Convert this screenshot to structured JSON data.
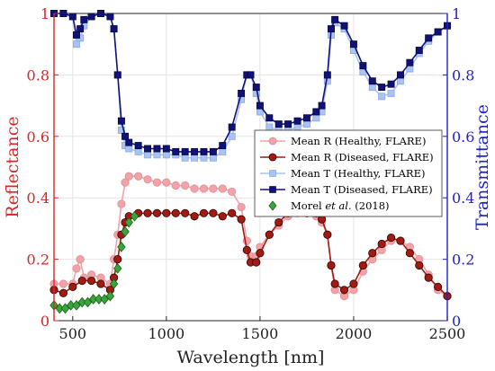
{
  "chart_data": {
    "type": "line",
    "xlabel": "Wavelength [nm]",
    "ylabel_left": "Reflectance",
    "ylabel_right": "Transmittance",
    "xlim": [
      400,
      2500
    ],
    "ylim_left": [
      0,
      1
    ],
    "ylim_right": [
      0,
      1
    ],
    "xticks": [
      "500",
      "1000",
      "1500",
      "2000",
      "2500"
    ],
    "yticks_left": [
      "0",
      "0.2",
      "0.4",
      "0.6",
      "0.8",
      "1"
    ],
    "yticks_right": [
      "0",
      "0.2",
      "0.4",
      "0.6",
      "0.8",
      "1"
    ],
    "grid": true,
    "legend_position": "center-right",
    "colors": {
      "left_axis": "#d62728",
      "right_axis": "#1f1fcc",
      "healthy_R": "#f0a3a8",
      "diseased_R": "#a31a12",
      "healthy_T": "#a9c3f2",
      "diseased_T": "#10127a",
      "morel": "#3aa63a"
    },
    "series": [
      {
        "name": "Mean R (Healthy, FLARE)",
        "axis": "left",
        "marker": "circle",
        "x": [
          400,
          450,
          500,
          520,
          540,
          560,
          600,
          650,
          700,
          720,
          740,
          760,
          780,
          800,
          850,
          900,
          950,
          1000,
          1050,
          1100,
          1150,
          1200,
          1250,
          1300,
          1350,
          1400,
          1430,
          1450,
          1480,
          1500,
          1550,
          1600,
          1650,
          1700,
          1750,
          1800,
          1830,
          1860,
          1880,
          1900,
          1950,
          2000,
          2050,
          2100,
          2150,
          2200,
          2250,
          2300,
          2350,
          2400,
          2450,
          2500
        ],
        "y": [
          0.12,
          0.12,
          0.12,
          0.17,
          0.2,
          0.14,
          0.15,
          0.14,
          0.12,
          0.2,
          0.28,
          0.38,
          0.45,
          0.47,
          0.47,
          0.46,
          0.45,
          0.45,
          0.44,
          0.44,
          0.43,
          0.43,
          0.43,
          0.43,
          0.42,
          0.37,
          0.26,
          0.21,
          0.21,
          0.24,
          0.28,
          0.31,
          0.34,
          0.35,
          0.35,
          0.34,
          0.32,
          0.28,
          0.18,
          0.1,
          0.08,
          0.1,
          0.16,
          0.2,
          0.23,
          0.26,
          0.26,
          0.24,
          0.2,
          0.15,
          0.1,
          0.08
        ]
      },
      {
        "name": "Mean R (Diseased, FLARE)",
        "axis": "left",
        "marker": "circle",
        "x": [
          400,
          450,
          500,
          550,
          600,
          650,
          700,
          720,
          740,
          760,
          780,
          800,
          850,
          900,
          950,
          1000,
          1050,
          1100,
          1150,
          1200,
          1250,
          1300,
          1350,
          1400,
          1430,
          1450,
          1480,
          1500,
          1550,
          1600,
          1650,
          1700,
          1750,
          1800,
          1830,
          1860,
          1880,
          1900,
          1950,
          2000,
          2050,
          2100,
          2150,
          2200,
          2250,
          2300,
          2350,
          2400,
          2450,
          2500
        ],
        "y": [
          0.1,
          0.09,
          0.11,
          0.13,
          0.13,
          0.12,
          0.1,
          0.14,
          0.2,
          0.28,
          0.32,
          0.34,
          0.35,
          0.35,
          0.35,
          0.35,
          0.35,
          0.35,
          0.34,
          0.35,
          0.35,
          0.34,
          0.35,
          0.33,
          0.23,
          0.19,
          0.19,
          0.22,
          0.28,
          0.32,
          0.35,
          0.36,
          0.35,
          0.35,
          0.33,
          0.28,
          0.18,
          0.12,
          0.1,
          0.12,
          0.18,
          0.22,
          0.25,
          0.27,
          0.26,
          0.22,
          0.18,
          0.14,
          0.11,
          0.08
        ]
      },
      {
        "name": "Mean T (Healthy, FLARE)",
        "axis": "right",
        "marker": "square",
        "x": [
          400,
          450,
          500,
          520,
          540,
          560,
          600,
          650,
          700,
          720,
          740,
          760,
          780,
          800,
          850,
          900,
          950,
          1000,
          1050,
          1100,
          1150,
          1200,
          1250,
          1300,
          1350,
          1400,
          1430,
          1450,
          1480,
          1500,
          1550,
          1600,
          1650,
          1700,
          1750,
          1800,
          1830,
          1860,
          1880,
          1900,
          1950,
          2000,
          2050,
          2100,
          2150,
          2200,
          2250,
          2300,
          2350,
          2400,
          2450,
          2500
        ],
        "y": [
          1.0,
          1.0,
          0.99,
          0.9,
          0.92,
          0.96,
          0.99,
          1.0,
          0.99,
          0.95,
          0.8,
          0.62,
          0.57,
          0.56,
          0.55,
          0.54,
          0.54,
          0.54,
          0.54,
          0.53,
          0.53,
          0.53,
          0.53,
          0.55,
          0.6,
          0.72,
          0.8,
          0.8,
          0.74,
          0.68,
          0.63,
          0.62,
          0.62,
          0.63,
          0.64,
          0.66,
          0.68,
          0.78,
          0.93,
          0.97,
          0.95,
          0.88,
          0.81,
          0.76,
          0.73,
          0.74,
          0.78,
          0.82,
          0.87,
          0.91,
          0.94,
          0.96
        ]
      },
      {
        "name": "Mean T (Diseased, FLARE)",
        "axis": "right",
        "marker": "square",
        "x": [
          400,
          450,
          500,
          520,
          540,
          560,
          600,
          650,
          700,
          720,
          740,
          760,
          780,
          800,
          850,
          900,
          950,
          1000,
          1050,
          1100,
          1150,
          1200,
          1250,
          1300,
          1350,
          1400,
          1430,
          1450,
          1480,
          1500,
          1550,
          1600,
          1650,
          1700,
          1750,
          1800,
          1830,
          1860,
          1880,
          1900,
          1950,
          2000,
          2050,
          2100,
          2150,
          2200,
          2250,
          2300,
          2350,
          2400,
          2450,
          2500
        ],
        "y": [
          1.0,
          1.0,
          0.99,
          0.93,
          0.95,
          0.98,
          0.99,
          1.0,
          0.99,
          0.95,
          0.8,
          0.65,
          0.6,
          0.58,
          0.57,
          0.56,
          0.56,
          0.56,
          0.55,
          0.55,
          0.55,
          0.55,
          0.55,
          0.57,
          0.63,
          0.74,
          0.8,
          0.8,
          0.76,
          0.7,
          0.66,
          0.64,
          0.64,
          0.65,
          0.66,
          0.68,
          0.7,
          0.8,
          0.95,
          0.98,
          0.96,
          0.9,
          0.83,
          0.78,
          0.76,
          0.77,
          0.8,
          0.84,
          0.88,
          0.92,
          0.94,
          0.96
        ]
      },
      {
        "name": "Morel et al. (2018)",
        "axis": "left",
        "marker": "diamond",
        "x": [
          400,
          430,
          460,
          490,
          520,
          550,
          580,
          610,
          640,
          670,
          700,
          720,
          740,
          760,
          780,
          800,
          830
        ],
        "y": [
          0.05,
          0.04,
          0.04,
          0.05,
          0.05,
          0.06,
          0.06,
          0.07,
          0.07,
          0.07,
          0.08,
          0.12,
          0.17,
          0.24,
          0.29,
          0.32,
          0.34
        ]
      }
    ],
    "legend": [
      {
        "label": "Mean R (Healthy, FLARE)"
      },
      {
        "label": "Mean R (Diseased, FLARE)"
      },
      {
        "label": "Mean T (Healthy, FLARE)"
      },
      {
        "label": "Mean T (Diseased, FLARE)"
      },
      {
        "label_pre": "Morel ",
        "label_em": "et al.",
        "label_post": " (2018)"
      }
    ]
  }
}
